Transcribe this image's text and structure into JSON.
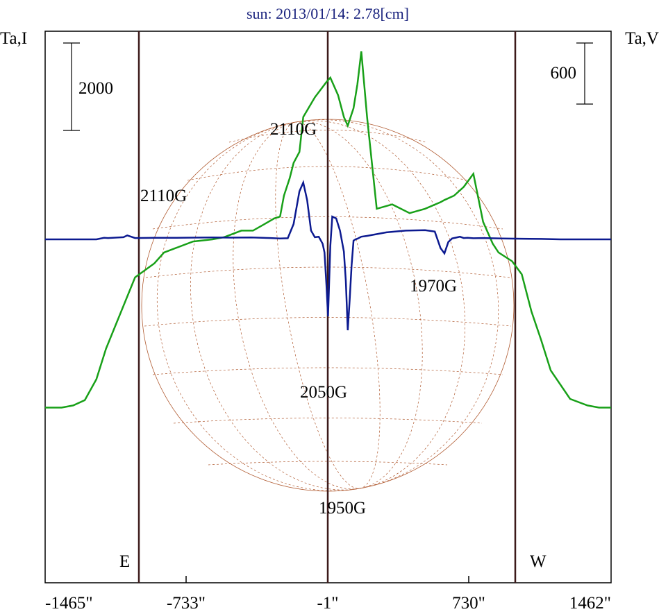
{
  "chart_data": {
    "type": "line",
    "title": "sun: 2013/01/14: 2.78[cm]",
    "ylabel_left": "Ta,I",
    "ylabel_right": "Ta,V",
    "scale_left": "2000",
    "scale_right": "600",
    "xlim": [
      -1465,
      1462
    ],
    "x_ticks": [
      "-1465\"",
      "-733\"",
      "-1\"",
      "730\"",
      "1462\""
    ],
    "limb_labels": {
      "east": "E",
      "west": "W"
    },
    "colors": {
      "intensity": "#18a018",
      "polarization": "#0c1a90",
      "grid": "#b05a30",
      "markers": "#3c1a1a",
      "title": "#1a237e"
    },
    "annotations": [
      {
        "text": "2110G",
        "x": -1100
      },
      {
        "text": "2110G",
        "x": -100
      },
      {
        "text": "2050G",
        "x": 10
      },
      {
        "text": "1950G",
        "x": 95
      },
      {
        "text": "1970G",
        "x": 640
      }
    ],
    "series": [
      {
        "key": "intensity",
        "x": [
          -1465,
          -1380,
          -1320,
          -1260,
          -1200,
          -1150,
          -1000,
          -900,
          -850,
          -790,
          -700,
          -600,
          -540,
          -450,
          -390,
          -330,
          -280,
          -250,
          -230,
          -200,
          -180,
          -150,
          -130,
          -70,
          -10,
          10,
          50,
          80,
          100,
          130,
          150,
          170,
          200,
          250,
          330,
          420,
          500,
          580,
          600,
          650,
          700,
          750,
          800,
          850,
          880,
          950,
          1000,
          1050,
          1100,
          1150,
          1250,
          1340,
          1400,
          1462
        ],
        "y": [
          -3850,
          -3850,
          -3800,
          -3680,
          -3200,
          -2500,
          -870,
          -550,
          -300,
          -200,
          -50,
          0,
          50,
          200,
          200,
          350,
          480,
          520,
          1000,
          1400,
          1750,
          2000,
          2800,
          3250,
          3600,
          3700,
          3300,
          2800,
          2600,
          3000,
          3550,
          4300,
          2800,
          700,
          800,
          600,
          700,
          850,
          900,
          1000,
          1200,
          1500,
          400,
          -100,
          -300,
          -500,
          -800,
          -1650,
          -2300,
          -3000,
          -3650,
          -3800,
          -3850,
          -3850
        ]
      },
      {
        "key": "polarization",
        "x": [
          -1465,
          -1200,
          -1160,
          -1140,
          -1100,
          -1060,
          -1040,
          -1000,
          -900,
          -800,
          -700,
          -600,
          -500,
          -400,
          -300,
          -250,
          -210,
          -180,
          -150,
          -130,
          -110,
          -90,
          -70,
          -50,
          -30,
          -20,
          -10,
          -2,
          10,
          20,
          40,
          60,
          80,
          90,
          100,
          110,
          120,
          130,
          140,
          150,
          170,
          200,
          300,
          400,
          500,
          550,
          580,
          600,
          620,
          640,
          660,
          680,
          700,
          720,
          750,
          800,
          900,
          1000,
          1100,
          1200,
          1300,
          1462
        ],
        "y": [
          0,
          0,
          35,
          30,
          40,
          50,
          90,
          30,
          35,
          35,
          40,
          45,
          40,
          45,
          30,
          20,
          25,
          350,
          1100,
          1300,
          900,
          200,
          50,
          60,
          -100,
          -300,
          -1050,
          -1760,
          -150,
          520,
          480,
          200,
          -280,
          -950,
          -2080,
          -1400,
          -600,
          -30,
          0,
          15,
          60,
          80,
          160,
          200,
          210,
          180,
          -200,
          -320,
          -60,
          20,
          40,
          60,
          30,
          35,
          25,
          30,
          20,
          15,
          10,
          0,
          0,
          0
        ]
      }
    ]
  }
}
